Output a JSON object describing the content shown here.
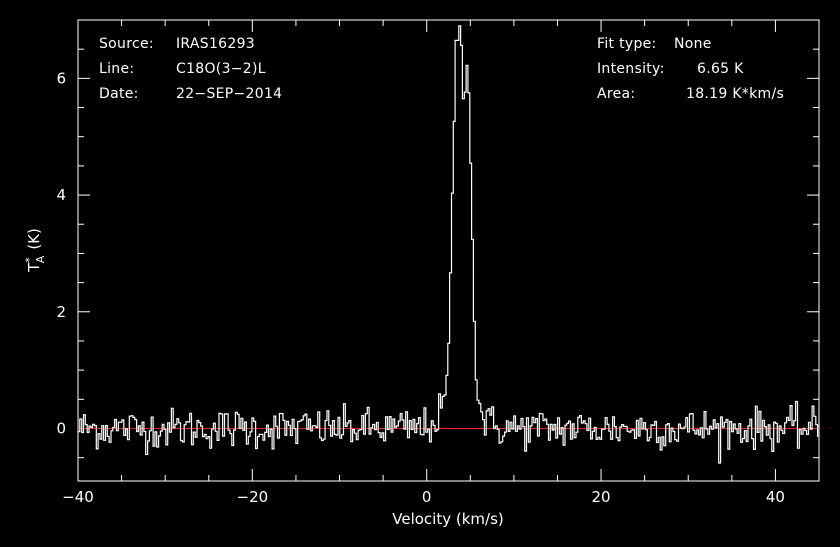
{
  "chart_data": {
    "type": "line",
    "xlabel": "Velocity (km/s)",
    "ylabel": "T",
    "ylabel_super": "*",
    "ylabel_sub": "A",
    "ylabel_unit": "(K)",
    "xlim": [
      -40,
      45
    ],
    "ylim": [
      -0.9,
      7.0
    ],
    "x_ticks": [
      -40,
      -20,
      0,
      20,
      40
    ],
    "x_tick_labels": [
      "−40",
      "−20",
      "0",
      "20",
      "40"
    ],
    "y_ticks": [
      0,
      2,
      4,
      6
    ],
    "y_tick_labels": [
      "0",
      "2",
      "4",
      "6"
    ],
    "grid": false,
    "baseline": 0,
    "baseline_color": "#ff2020",
    "line_color": "#ffffff",
    "background": "#000000",
    "noise_rms": 0.17,
    "channel_width": 0.21,
    "peak_components": [
      {
        "center": 3.5,
        "amplitude": 6.6,
        "sigma": 0.55
      },
      {
        "center": 4.55,
        "amplitude": 5.3,
        "sigma": 0.5
      },
      {
        "center": 3.8,
        "amplitude": 0.7,
        "sigma": 1.6
      }
    ],
    "dip": {
      "center": 4.1,
      "depth": 2.3,
      "sigma": 0.25
    },
    "peak_value": 6.65
  },
  "info": {
    "source_label": "Source:",
    "source_value": "IRAS16293",
    "line_label": "Line:",
    "line_value": "C18O(3−2)L",
    "date_label": "Date:",
    "date_value": "22−SEP−2014",
    "fit_label": "Fit type:",
    "fit_value": "None",
    "intensity_label": "Intensity:",
    "intensity_value": "6.65 K",
    "area_label": "Area:",
    "area_value": "18.19 K*km/s"
  }
}
